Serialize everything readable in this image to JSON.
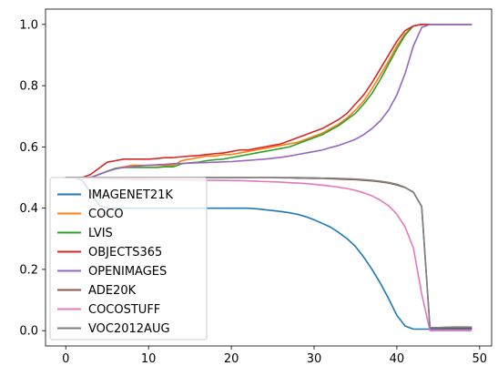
{
  "chart_data": {
    "type": "line",
    "title": "",
    "xlabel": "",
    "ylabel": "",
    "xlim": [
      -2.45,
      51.45
    ],
    "ylim": [
      -0.05,
      1.05
    ],
    "xticks": [
      0,
      10,
      20,
      30,
      40,
      50
    ],
    "yticks": [
      0.0,
      0.2,
      0.4,
      0.6,
      0.8,
      1.0
    ],
    "xtick_labels": [
      "0",
      "10",
      "20",
      "30",
      "40",
      "50"
    ],
    "ytick_labels": [
      "0.0",
      "0.2",
      "0.4",
      "0.6",
      "0.8",
      "1.0"
    ],
    "grid": false,
    "legend_position": "lower-left",
    "x": [
      0,
      1,
      2,
      3,
      4,
      5,
      6,
      7,
      8,
      9,
      10,
      11,
      12,
      13,
      14,
      15,
      16,
      17,
      18,
      19,
      20,
      21,
      22,
      23,
      24,
      25,
      26,
      27,
      28,
      29,
      30,
      31,
      32,
      33,
      34,
      35,
      36,
      37,
      38,
      39,
      40,
      41,
      42,
      43,
      44,
      45,
      46,
      47,
      48,
      49
    ],
    "series": [
      {
        "name": "IMAGENET21K",
        "color": "#1f77b4",
        "values": [
          0.5,
          0.5,
          0.49,
          0.45,
          0.41,
          0.4,
          0.4,
          0.4,
          0.4,
          0.4,
          0.4,
          0.4,
          0.4,
          0.4,
          0.4,
          0.4,
          0.4,
          0.4,
          0.4,
          0.4,
          0.4,
          0.4,
          0.4,
          0.398,
          0.395,
          0.392,
          0.389,
          0.385,
          0.38,
          0.372,
          0.362,
          0.35,
          0.338,
          0.32,
          0.3,
          0.275,
          0.24,
          0.2,
          0.155,
          0.105,
          0.05,
          0.015,
          0.005,
          0.005,
          0.005,
          0.005,
          0.005,
          0.005,
          0.005,
          0.005
        ]
      },
      {
        "name": "COCO",
        "color": "#ff7f0e",
        "values": [
          0.5,
          0.5,
          0.5,
          0.5,
          0.51,
          0.52,
          0.53,
          0.535,
          0.54,
          0.54,
          0.54,
          0.54,
          0.54,
          0.54,
          0.555,
          0.56,
          0.565,
          0.57,
          0.57,
          0.575,
          0.575,
          0.58,
          0.585,
          0.59,
          0.595,
          0.6,
          0.605,
          0.61,
          0.615,
          0.625,
          0.635,
          0.645,
          0.66,
          0.675,
          0.695,
          0.72,
          0.75,
          0.79,
          0.835,
          0.88,
          0.93,
          0.97,
          0.995,
          1.0,
          1.0,
          1.0,
          1.0,
          1.0,
          1.0,
          1.0
        ]
      },
      {
        "name": "LVIS",
        "color": "#2ca02c",
        "values": [
          0.5,
          0.5,
          0.5,
          0.5,
          0.51,
          0.52,
          0.53,
          0.533,
          0.533,
          0.533,
          0.533,
          0.533,
          0.535,
          0.535,
          0.545,
          0.548,
          0.55,
          0.555,
          0.558,
          0.56,
          0.565,
          0.57,
          0.575,
          0.58,
          0.585,
          0.59,
          0.595,
          0.6,
          0.61,
          0.62,
          0.63,
          0.64,
          0.655,
          0.67,
          0.69,
          0.71,
          0.74,
          0.775,
          0.82,
          0.87,
          0.92,
          0.965,
          0.995,
          1.0,
          1.0,
          1.0,
          1.0,
          1.0,
          1.0,
          1.0
        ]
      },
      {
        "name": "OBJECTS365",
        "color": "#d62728",
        "values": [
          0.5,
          0.5,
          0.5,
          0.51,
          0.53,
          0.55,
          0.555,
          0.56,
          0.56,
          0.56,
          0.56,
          0.562,
          0.565,
          0.565,
          0.568,
          0.57,
          0.572,
          0.575,
          0.578,
          0.58,
          0.585,
          0.59,
          0.59,
          0.595,
          0.6,
          0.605,
          0.61,
          0.62,
          0.63,
          0.64,
          0.65,
          0.66,
          0.675,
          0.69,
          0.71,
          0.74,
          0.77,
          0.81,
          0.855,
          0.9,
          0.945,
          0.98,
          0.995,
          1.0,
          1.0,
          1.0,
          1.0,
          1.0,
          1.0,
          1.0
        ]
      },
      {
        "name": "OPENIMAGES",
        "color": "#9467bd",
        "values": [
          0.5,
          0.5,
          0.5,
          0.5,
          0.51,
          0.52,
          0.528,
          0.533,
          0.536,
          0.538,
          0.54,
          0.542,
          0.543,
          0.545,
          0.546,
          0.547,
          0.548,
          0.549,
          0.55,
          0.551,
          0.552,
          0.554,
          0.556,
          0.558,
          0.56,
          0.563,
          0.566,
          0.57,
          0.575,
          0.58,
          0.585,
          0.59,
          0.598,
          0.605,
          0.615,
          0.625,
          0.64,
          0.66,
          0.685,
          0.72,
          0.77,
          0.84,
          0.93,
          0.99,
          1.0,
          1.0,
          1.0,
          1.0,
          1.0,
          1.0
        ]
      },
      {
        "name": "ADE20K",
        "color": "#8c564b",
        "values": [
          0.5,
          0.5,
          0.5,
          0.5,
          0.5,
          0.5,
          0.5,
          0.5,
          0.5,
          0.5,
          0.5,
          0.5,
          0.5,
          0.5,
          0.5,
          0.5,
          0.5,
          0.5,
          0.5,
          0.5,
          0.5,
          0.5,
          0.5,
          0.5,
          0.5,
          0.5,
          0.499,
          0.499,
          0.498,
          0.498,
          0.497,
          0.497,
          0.496,
          0.495,
          0.494,
          0.493,
          0.491,
          0.489,
          0.486,
          0.482,
          0.476,
          0.467,
          0.452,
          0.405,
          0.008,
          0.008,
          0.008,
          0.008,
          0.008,
          0.008
        ]
      },
      {
        "name": "COCOSTUFF",
        "color": "#e377c2",
        "values": [
          0.5,
          0.5,
          0.499,
          0.498,
          0.497,
          0.496,
          0.495,
          0.495,
          0.494,
          0.494,
          0.494,
          0.493,
          0.493,
          0.493,
          0.492,
          0.492,
          0.492,
          0.491,
          0.491,
          0.491,
          0.49,
          0.49,
          0.489,
          0.488,
          0.487,
          0.486,
          0.485,
          0.483,
          0.482,
          0.48,
          0.478,
          0.475,
          0.472,
          0.468,
          0.464,
          0.458,
          0.45,
          0.44,
          0.426,
          0.408,
          0.38,
          0.338,
          0.27,
          0.12,
          0.0,
          0.0,
          0.0,
          0.0,
          0.0,
          0.0
        ]
      },
      {
        "name": "VOC2012AUG",
        "color": "#7f7f7f",
        "values": [
          0.5,
          0.5,
          0.5,
          0.5,
          0.5,
          0.5,
          0.5,
          0.5,
          0.5,
          0.5,
          0.5,
          0.5,
          0.5,
          0.5,
          0.5,
          0.5,
          0.5,
          0.5,
          0.5,
          0.5,
          0.5,
          0.5,
          0.5,
          0.5,
          0.5,
          0.5,
          0.5,
          0.5,
          0.5,
          0.499,
          0.499,
          0.498,
          0.498,
          0.497,
          0.496,
          0.495,
          0.493,
          0.491,
          0.488,
          0.484,
          0.478,
          0.468,
          0.452,
          0.405,
          0.01,
          0.01,
          0.011,
          0.012,
          0.012,
          0.012
        ]
      }
    ]
  }
}
